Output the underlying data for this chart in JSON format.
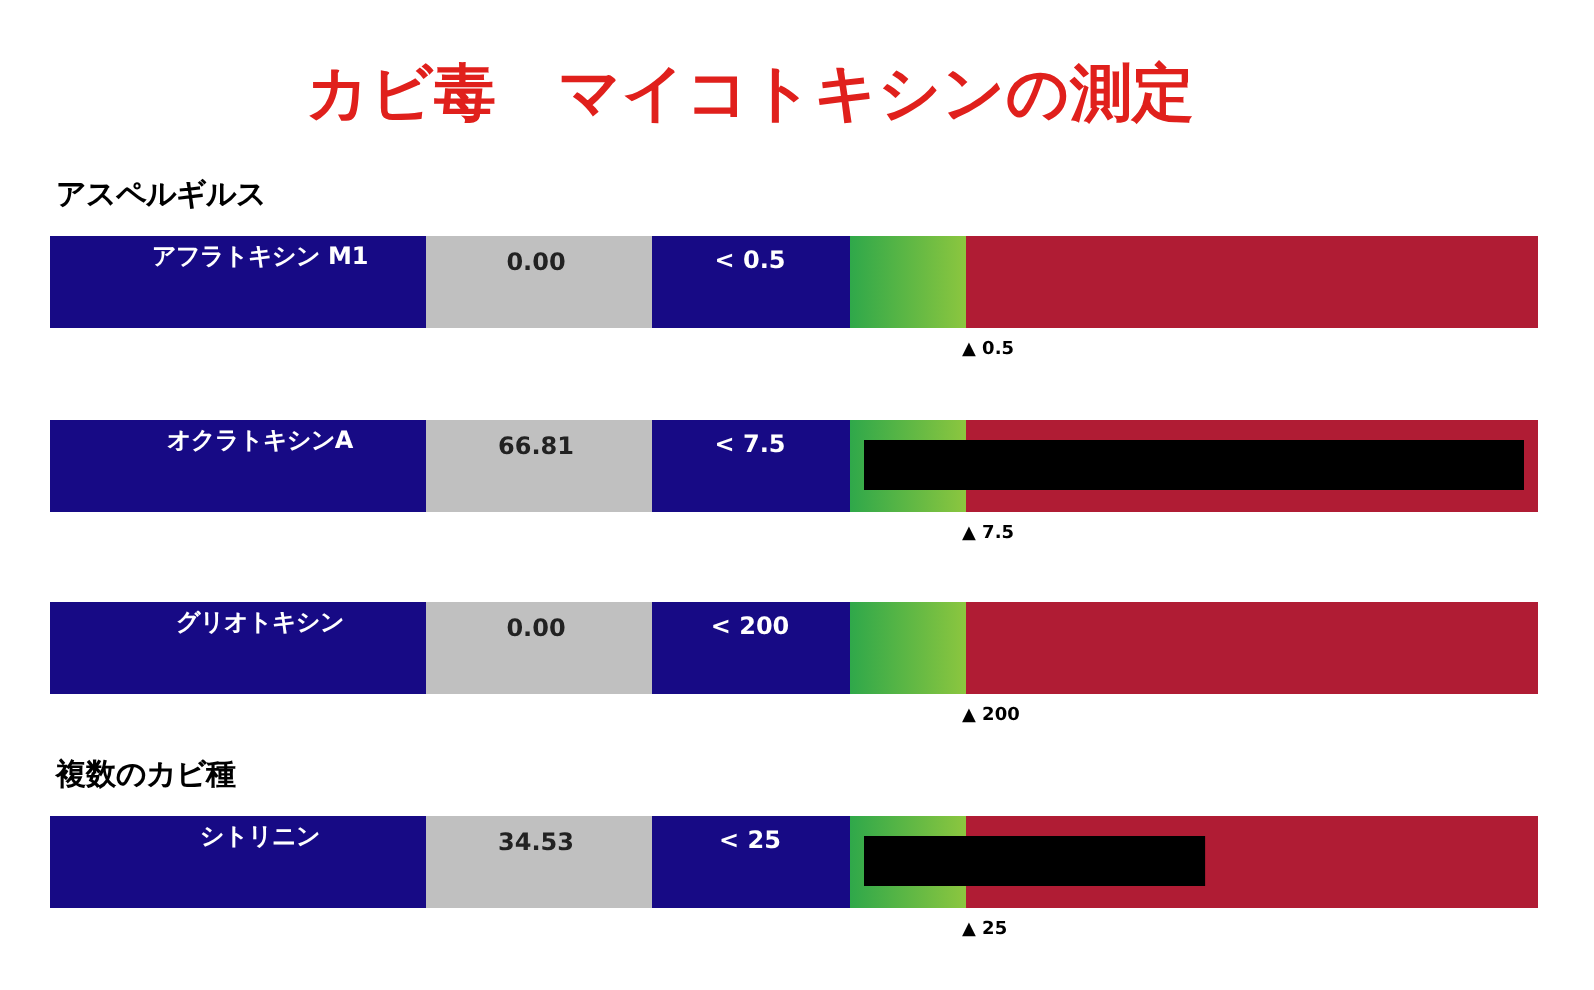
{
  "chart_data": {
    "type": "bar",
    "orientation": "horizontal",
    "title": "カビ毒　マイコトキシンの測定",
    "categories": [
      "アフラトキシン M1",
      "オクラトキシンA",
      "グリオトキシン",
      "シトリニン"
    ],
    "values": [
      0,
      66.81,
      0,
      34.53
    ],
    "value_labels": [
      "0.00",
      "66.81",
      "0.00",
      "34.53"
    ],
    "color": "#000000",
    "annotations": [
      "アスペルギルス",
      "複数のカビ種",
      "< 0.5",
      "< 7.5",
      "< 200",
      "< 25",
      "▲ 0.5",
      "▲ 7.5",
      "▲ 200",
      "▲ 25"
    ]
  }
}
